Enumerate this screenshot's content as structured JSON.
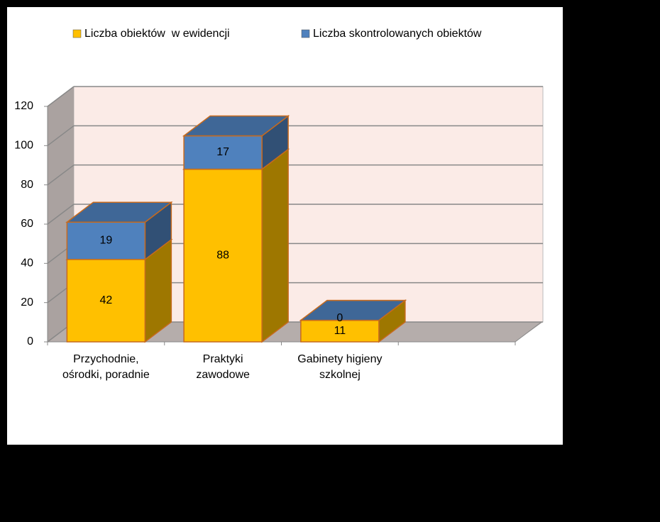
{
  "chart_data": {
    "type": "bar3d_stacked",
    "categories": [
      "Przychodnie,\nośrodki, poradnie",
      "Praktyki\nzawodowe",
      "Gabinety higieny\nszkolnej",
      null
    ],
    "series": [
      {
        "name": "Liczba obiektów  w ewidencji",
        "color": "#ffc000",
        "values": [
          42,
          88,
          11,
          null
        ]
      },
      {
        "name": "Liczba skontrolowanych obiektów",
        "color": "#4f81bd",
        "values": [
          19,
          17,
          0,
          null
        ]
      }
    ],
    "ylim": [
      0,
      120
    ],
    "yticks": [
      0,
      20,
      40,
      60,
      80,
      100,
      120
    ],
    "grid": true,
    "legend": "top"
  }
}
